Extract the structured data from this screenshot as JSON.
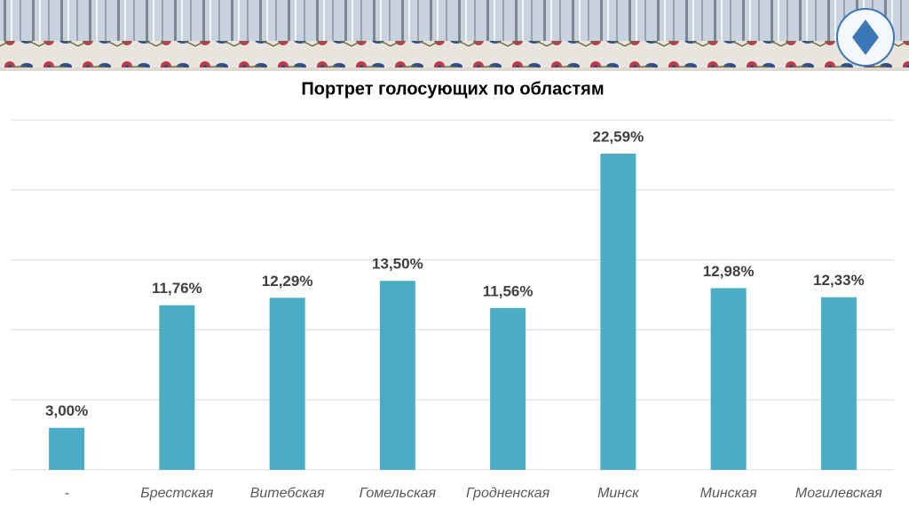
{
  "chart_data": {
    "type": "bar",
    "title": "Портрет голосующих по областям",
    "categories": [
      "-",
      "Брестская",
      "Витебская",
      "Гомельская",
      "Гродненская",
      "Минск",
      "Минская",
      "Могилевская"
    ],
    "values": [
      3.0,
      11.76,
      12.29,
      13.5,
      11.56,
      22.59,
      12.98,
      12.33
    ],
    "value_labels": [
      "3,00%",
      "11,76%",
      "12,29%",
      "13,50%",
      "11,56%",
      "22,59%",
      "12,98%",
      "12,33%"
    ],
    "color": "#4bacc6",
    "ylim": [
      0,
      25
    ],
    "yticks": [
      0,
      5,
      10,
      15,
      20,
      25
    ],
    "tick_labels": false,
    "grid": true
  }
}
